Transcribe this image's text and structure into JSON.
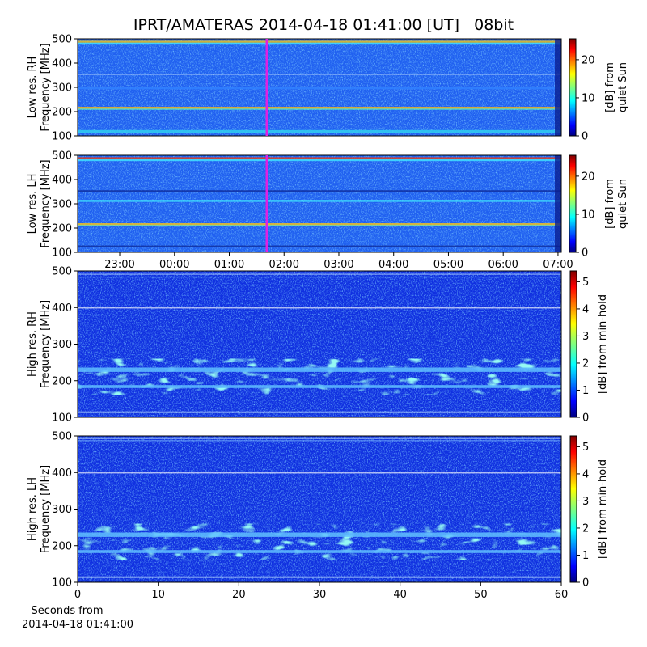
{
  "chart_data": [
    {
      "type": "heatmap",
      "title": "IPRT/AMATERAS 2014-04-18 01:41:00 [UT]   08bit",
      "ylabel": [
        "Low res. RH",
        "Frequency [MHz]"
      ],
      "ylim": [
        100,
        500
      ],
      "yticks": [
        100,
        200,
        300,
        400,
        500
      ],
      "xlim": [
        -1.768,
        7.06
      ],
      "marker_x": 1.683,
      "marker_color": "#e020e0",
      "cmap": "jet",
      "clim": [
        0,
        25.5
      ],
      "cticks": [
        0,
        10,
        20
      ],
      "clabel": [
        "[dB] from",
        "quiet Sun"
      ]
    },
    {
      "type": "heatmap",
      "ylabel": [
        "Low res. LH",
        "Frequency [MHz]"
      ],
      "ylim": [
        100,
        500
      ],
      "yticks": [
        100,
        200,
        300,
        400,
        500
      ],
      "xlim": [
        -1.768,
        7.06
      ],
      "xticks": [
        {
          "value": -1,
          "label": "23:00"
        },
        {
          "value": 0,
          "label": "00:00"
        },
        {
          "value": 1,
          "label": "01:00"
        },
        {
          "value": 2,
          "label": "02:00"
        },
        {
          "value": 3,
          "label": "03:00"
        },
        {
          "value": 4,
          "label": "04:00"
        },
        {
          "value": 5,
          "label": "05:00"
        },
        {
          "value": 6,
          "label": "06:00"
        },
        {
          "value": 7,
          "label": "07:00"
        }
      ],
      "marker_x": 1.683,
      "marker_color": "#e020e0",
      "cmap": "jet",
      "clim": [
        0,
        25.5
      ],
      "cticks": [
        0,
        10,
        20
      ],
      "clabel": [
        "[dB] from",
        "quiet Sun"
      ]
    },
    {
      "type": "heatmap",
      "ylabel": [
        "High res. RH",
        "Frequency [MHz]"
      ],
      "ylim": [
        100,
        500
      ],
      "yticks": [
        100,
        200,
        300,
        400,
        500
      ],
      "cmap": "jet",
      "clim": [
        0,
        5.4
      ],
      "cticks": [
        0,
        1,
        2,
        3,
        4,
        5
      ],
      "clabel": [
        "[dB] from min-hold"
      ]
    },
    {
      "type": "heatmap",
      "ylabel": [
        "High res. LH",
        "Frequency [MHz]"
      ],
      "ylim": [
        100,
        500
      ],
      "yticks": [
        100,
        200,
        300,
        400,
        500
      ],
      "xlim": [
        0,
        60
      ],
      "xticks": [
        0,
        10,
        20,
        30,
        40,
        50,
        60
      ],
      "xlabel": [
        "Seconds from",
        "2014-04-18 01:41:00"
      ],
      "cmap": "jet",
      "clim": [
        0,
        5.4
      ],
      "cticks": [
        0,
        1,
        2,
        3,
        4,
        5
      ],
      "clabel": [
        "[dB] from min-hold"
      ]
    }
  ]
}
